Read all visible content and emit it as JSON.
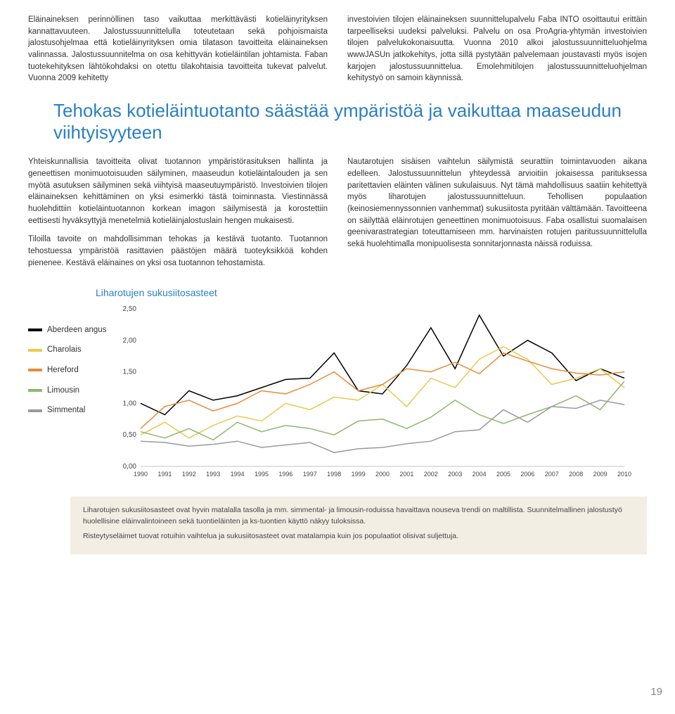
{
  "top_left": "Eläinaineksen perinnöllinen taso vaikuttaa merkittävästi kotieläinyrityksen kannattavuuteen. Jalostussuunnittelulla toteutetaan sekä pohjoismaista jalostusohjelmaa että kotieläinyrityksen omia tilatason tavoitteita eläinaineksen valinnassa. Jalostussuunnitelma on osa kehittyvän kotieläintilan johtamista. Faban tuotekehityksen lähtökohdaksi on otettu tilakohtaisia tavoitteita tukevat palvelut. Vuonna 2009 kehitetty",
  "top_right": "investoivien tilojen eläinaineksen suunnittelupalvelu Faba INTO osoittautui erittäin tarpeelliseksi uudeksi palveluksi. Palvelu on osa ProAgria-yhtymän investoivien tilojen palvelukokonaisuutta. Vuonna 2010 alkoi jalostussuunnitteluohjelma wwwJASUn jatkokehitys, jotta sillä pystytään palvelemaan joustavasti myös isojen karjojen jalostussuunnittelua. Emolehmitilojen jalostussuunnitteluohjelman kehitystyö on samoin käynnissä.",
  "section_title": "Tehokas kotieläintuotanto säästää ympäristöä ja vaikuttaa maaseudun viihtyisyyteen",
  "mid_left_p1": "Yhteiskunnallisia tavoitteita olivat tuotannon ympäristörasituksen hallinta ja geneettisen monimuotoisuuden säilyminen, maaseudun kotieläintalouden ja sen myötä asutuksen säilyminen sekä viihtyisä maaseutuympäristö. Investoivien tilojen eläinaineksen kehittäminen on yksi esimerkki tästä toiminnasta. Viestinnässä huolehdittiin kotieläintuotannon korkean imagon säilymisestä ja korostettiin eettisesti hyväksyttyjä menetelmiä kotieläinjalostuslain hengen mukaisesti.",
  "mid_left_p2": "Tiloilla tavoite on mahdollisimman tehokas ja kestävä tuotanto. Tuotannon tehostuessa ympäristöä rasittavien päästöjen määrä tuoteyksikköä kohden pienenee. Kestävä eläinaines on yksi osa tuotannon tehostamista.",
  "mid_right_p1": "Nautarotujen sisäisen vaihtelun säilymistä seurattiin toimintavuoden aikana edelleen. Jalostussuunnittelun yhteydessä arvioitiin jokaisessa parituksessa paritettavien eläinten välinen sukulaisuus. Nyt tämä mahdollisuus saatiin kehitettyä myös liharotujen jalostussuunnitteluun. Tehollisen populaation (keinosiemennyssonnien vanhemmat) sukusiitosta pyritään välttämään. Tavoitteena on säilyttää eläinrotujen geneettinen monimuotoisuus. Faba osallistui suomalaisen geenivarastrategian toteuttamiseen mm. harvinaisten rotujen paritussuunnittelulla sekä huolehtimalla monipuolisesta sonnitarjonnasta näissä roduissa.",
  "chart": {
    "title": "Liharotujen sukusiitosasteet",
    "type": "line",
    "years": [
      1990,
      1991,
      1992,
      1993,
      1994,
      1995,
      1996,
      1997,
      1998,
      1999,
      2000,
      2001,
      2002,
      2003,
      2004,
      2005,
      2006,
      2007,
      2008,
      2009,
      2010
    ],
    "ylim": [
      0.0,
      2.5
    ],
    "ytick_step": 0.5,
    "ylabels": [
      "0,00",
      "0,50",
      "1,00",
      "1,50",
      "2,00",
      "2,50"
    ],
    "series": [
      {
        "name": "Aberdeen angus",
        "color": "#000000",
        "values": [
          1.0,
          0.82,
          1.2,
          1.05,
          1.12,
          1.25,
          1.38,
          1.4,
          1.8,
          1.2,
          1.15,
          1.6,
          2.2,
          1.55,
          2.4,
          1.75,
          2.0,
          1.8,
          1.36,
          1.55,
          1.4
        ]
      },
      {
        "name": "Charolais",
        "color": "#ecc84e",
        "values": [
          0.5,
          0.7,
          0.45,
          0.65,
          0.8,
          0.72,
          1.0,
          0.9,
          1.1,
          1.05,
          1.3,
          0.95,
          1.4,
          1.25,
          1.7,
          1.9,
          1.7,
          1.3,
          1.4,
          1.55,
          1.25
        ]
      },
      {
        "name": "Hereford",
        "color": "#e78b3a",
        "values": [
          0.6,
          0.95,
          1.05,
          0.88,
          1.0,
          1.2,
          1.15,
          1.3,
          1.5,
          1.2,
          1.3,
          1.55,
          1.5,
          1.65,
          1.47,
          1.8,
          1.67,
          1.55,
          1.48,
          1.45,
          1.5
        ]
      },
      {
        "name": "Limousin",
        "color": "#8fb76a",
        "values": [
          0.55,
          0.45,
          0.6,
          0.42,
          0.7,
          0.55,
          0.65,
          0.6,
          0.5,
          0.72,
          0.75,
          0.6,
          0.78,
          1.05,
          0.82,
          0.68,
          0.82,
          0.95,
          1.12,
          0.9,
          1.35
        ]
      },
      {
        "name": "Simmental",
        "color": "#9a9a9a",
        "values": [
          0.4,
          0.38,
          0.32,
          0.35,
          0.4,
          0.3,
          0.34,
          0.38,
          0.22,
          0.28,
          0.3,
          0.36,
          0.4,
          0.55,
          0.58,
          0.9,
          0.7,
          0.95,
          0.92,
          1.05,
          0.98
        ]
      }
    ],
    "background_color": "#ffffff",
    "line_width": 1.5
  },
  "legend_items": [
    {
      "label": "Aberdeen angus",
      "color": "#000000"
    },
    {
      "label": "Charolais",
      "color": "#ecc84e"
    },
    {
      "label": "Hereford",
      "color": "#e78b3a"
    },
    {
      "label": "Limousin",
      "color": "#8fb76a"
    },
    {
      "label": "Simmental",
      "color": "#9a9a9a"
    }
  ],
  "footer_p1": "Liharotujen sukusiitosasteet ovat hyvin matalalla tasolla ja mm. simmental- ja limousin-roduissa havaittava nouseva trendi on maltillista. Suunnitelmallinen jalostustyö huolellisine eläinvalintoineen sekä tuontieläinten ja ks-tuontien käyttö näkyy tuloksissa.",
  "footer_p2": "Risteytyseläimet tuovat rotuihin vaihtelua ja sukusiitosasteet ovat matalampia kuin jos populaatiot olisivat suljettuja.",
  "page_number": "19"
}
